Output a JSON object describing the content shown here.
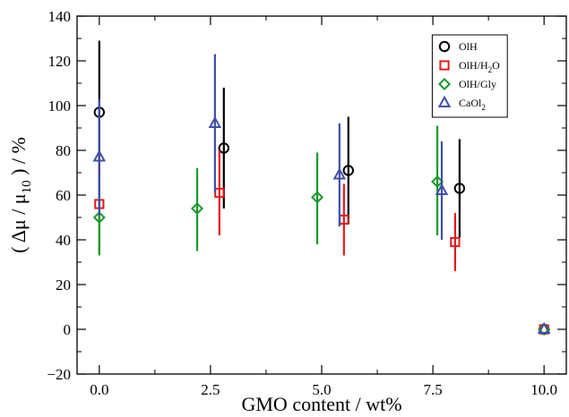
{
  "chart_data": {
    "type": "scatter",
    "xlabel": "GMO content / wt%",
    "ylabel_parts": {
      "open": "( Δμ / μ",
      "sub": "10",
      "close": " ) / %"
    },
    "xlim": [
      -0.5,
      10.5
    ],
    "ylim": [
      -20,
      140
    ],
    "xticks": [
      0.0,
      2.5,
      5.0,
      7.5,
      10.0
    ],
    "xtick_labels": [
      "0.0",
      "2.5",
      "5.0",
      "7.5",
      "10.0"
    ],
    "yticks": [
      -20,
      0,
      20,
      40,
      60,
      80,
      100,
      120,
      140
    ],
    "ytick_labels": [
      "−20",
      "0",
      "20",
      "40",
      "60",
      "80",
      "100",
      "120",
      "140"
    ],
    "grid": false,
    "legend_position": "top-right",
    "series": [
      {
        "name": "OlH",
        "legend": {
          "main": "OlH",
          "sub": "",
          "after": ""
        },
        "marker": "circle",
        "color": "#000000",
        "points": [
          {
            "x": 0.0,
            "y": 97,
            "ylow": 60,
            "yhigh": 129
          },
          {
            "x": 2.8,
            "y": 81,
            "ylow": 54,
            "yhigh": 108
          },
          {
            "x": 5.6,
            "y": 71,
            "ylow": 47,
            "yhigh": 95
          },
          {
            "x": 8.1,
            "y": 63,
            "ylow": 41,
            "yhigh": 85
          },
          {
            "x": 10.0,
            "y": 0,
            "ylow": 0,
            "yhigh": 0
          }
        ]
      },
      {
        "name": "OlH/H2O",
        "legend": {
          "main": "OlH/H",
          "sub": "2",
          "after": "O"
        },
        "marker": "square",
        "color": "#e41a1c",
        "points": [
          {
            "x": 0.0,
            "y": 56,
            "ylow": 34,
            "yhigh": 79
          },
          {
            "x": 2.7,
            "y": 61,
            "ylow": 42,
            "yhigh": 80
          },
          {
            "x": 5.5,
            "y": 49,
            "ylow": 33,
            "yhigh": 65
          },
          {
            "x": 8.0,
            "y": 39,
            "ylow": 26,
            "yhigh": 52
          },
          {
            "x": 10.0,
            "y": 0,
            "ylow": 0,
            "yhigh": 0
          }
        ]
      },
      {
        "name": "OlH/Gly",
        "legend": {
          "main": "OlH/Gly",
          "sub": "",
          "after": ""
        },
        "marker": "diamond",
        "color": "#1a9a2a",
        "points": [
          {
            "x": 0.0,
            "y": 50,
            "ylow": 33,
            "yhigh": 68
          },
          {
            "x": 2.2,
            "y": 54,
            "ylow": 35,
            "yhigh": 72
          },
          {
            "x": 4.9,
            "y": 59,
            "ylow": 38,
            "yhigh": 79
          },
          {
            "x": 7.6,
            "y": 66,
            "ylow": 42,
            "yhigh": 91
          },
          {
            "x": 10.0,
            "y": 0,
            "ylow": 0,
            "yhigh": 0
          }
        ]
      },
      {
        "name": "CaOl2",
        "legend": {
          "main": "CaOl",
          "sub": "2",
          "after": ""
        },
        "marker": "triangle",
        "color": "#3f4fa8",
        "points": [
          {
            "x": 0.0,
            "y": 77,
            "ylow": 51,
            "yhigh": 103
          },
          {
            "x": 2.6,
            "y": 92,
            "ylow": 61,
            "yhigh": 123
          },
          {
            "x": 5.4,
            "y": 69,
            "ylow": 46,
            "yhigh": 92
          },
          {
            "x": 7.7,
            "y": 62,
            "ylow": 40,
            "yhigh": 84
          },
          {
            "x": 10.0,
            "y": 0,
            "ylow": 0,
            "yhigh": 0
          }
        ]
      }
    ]
  }
}
